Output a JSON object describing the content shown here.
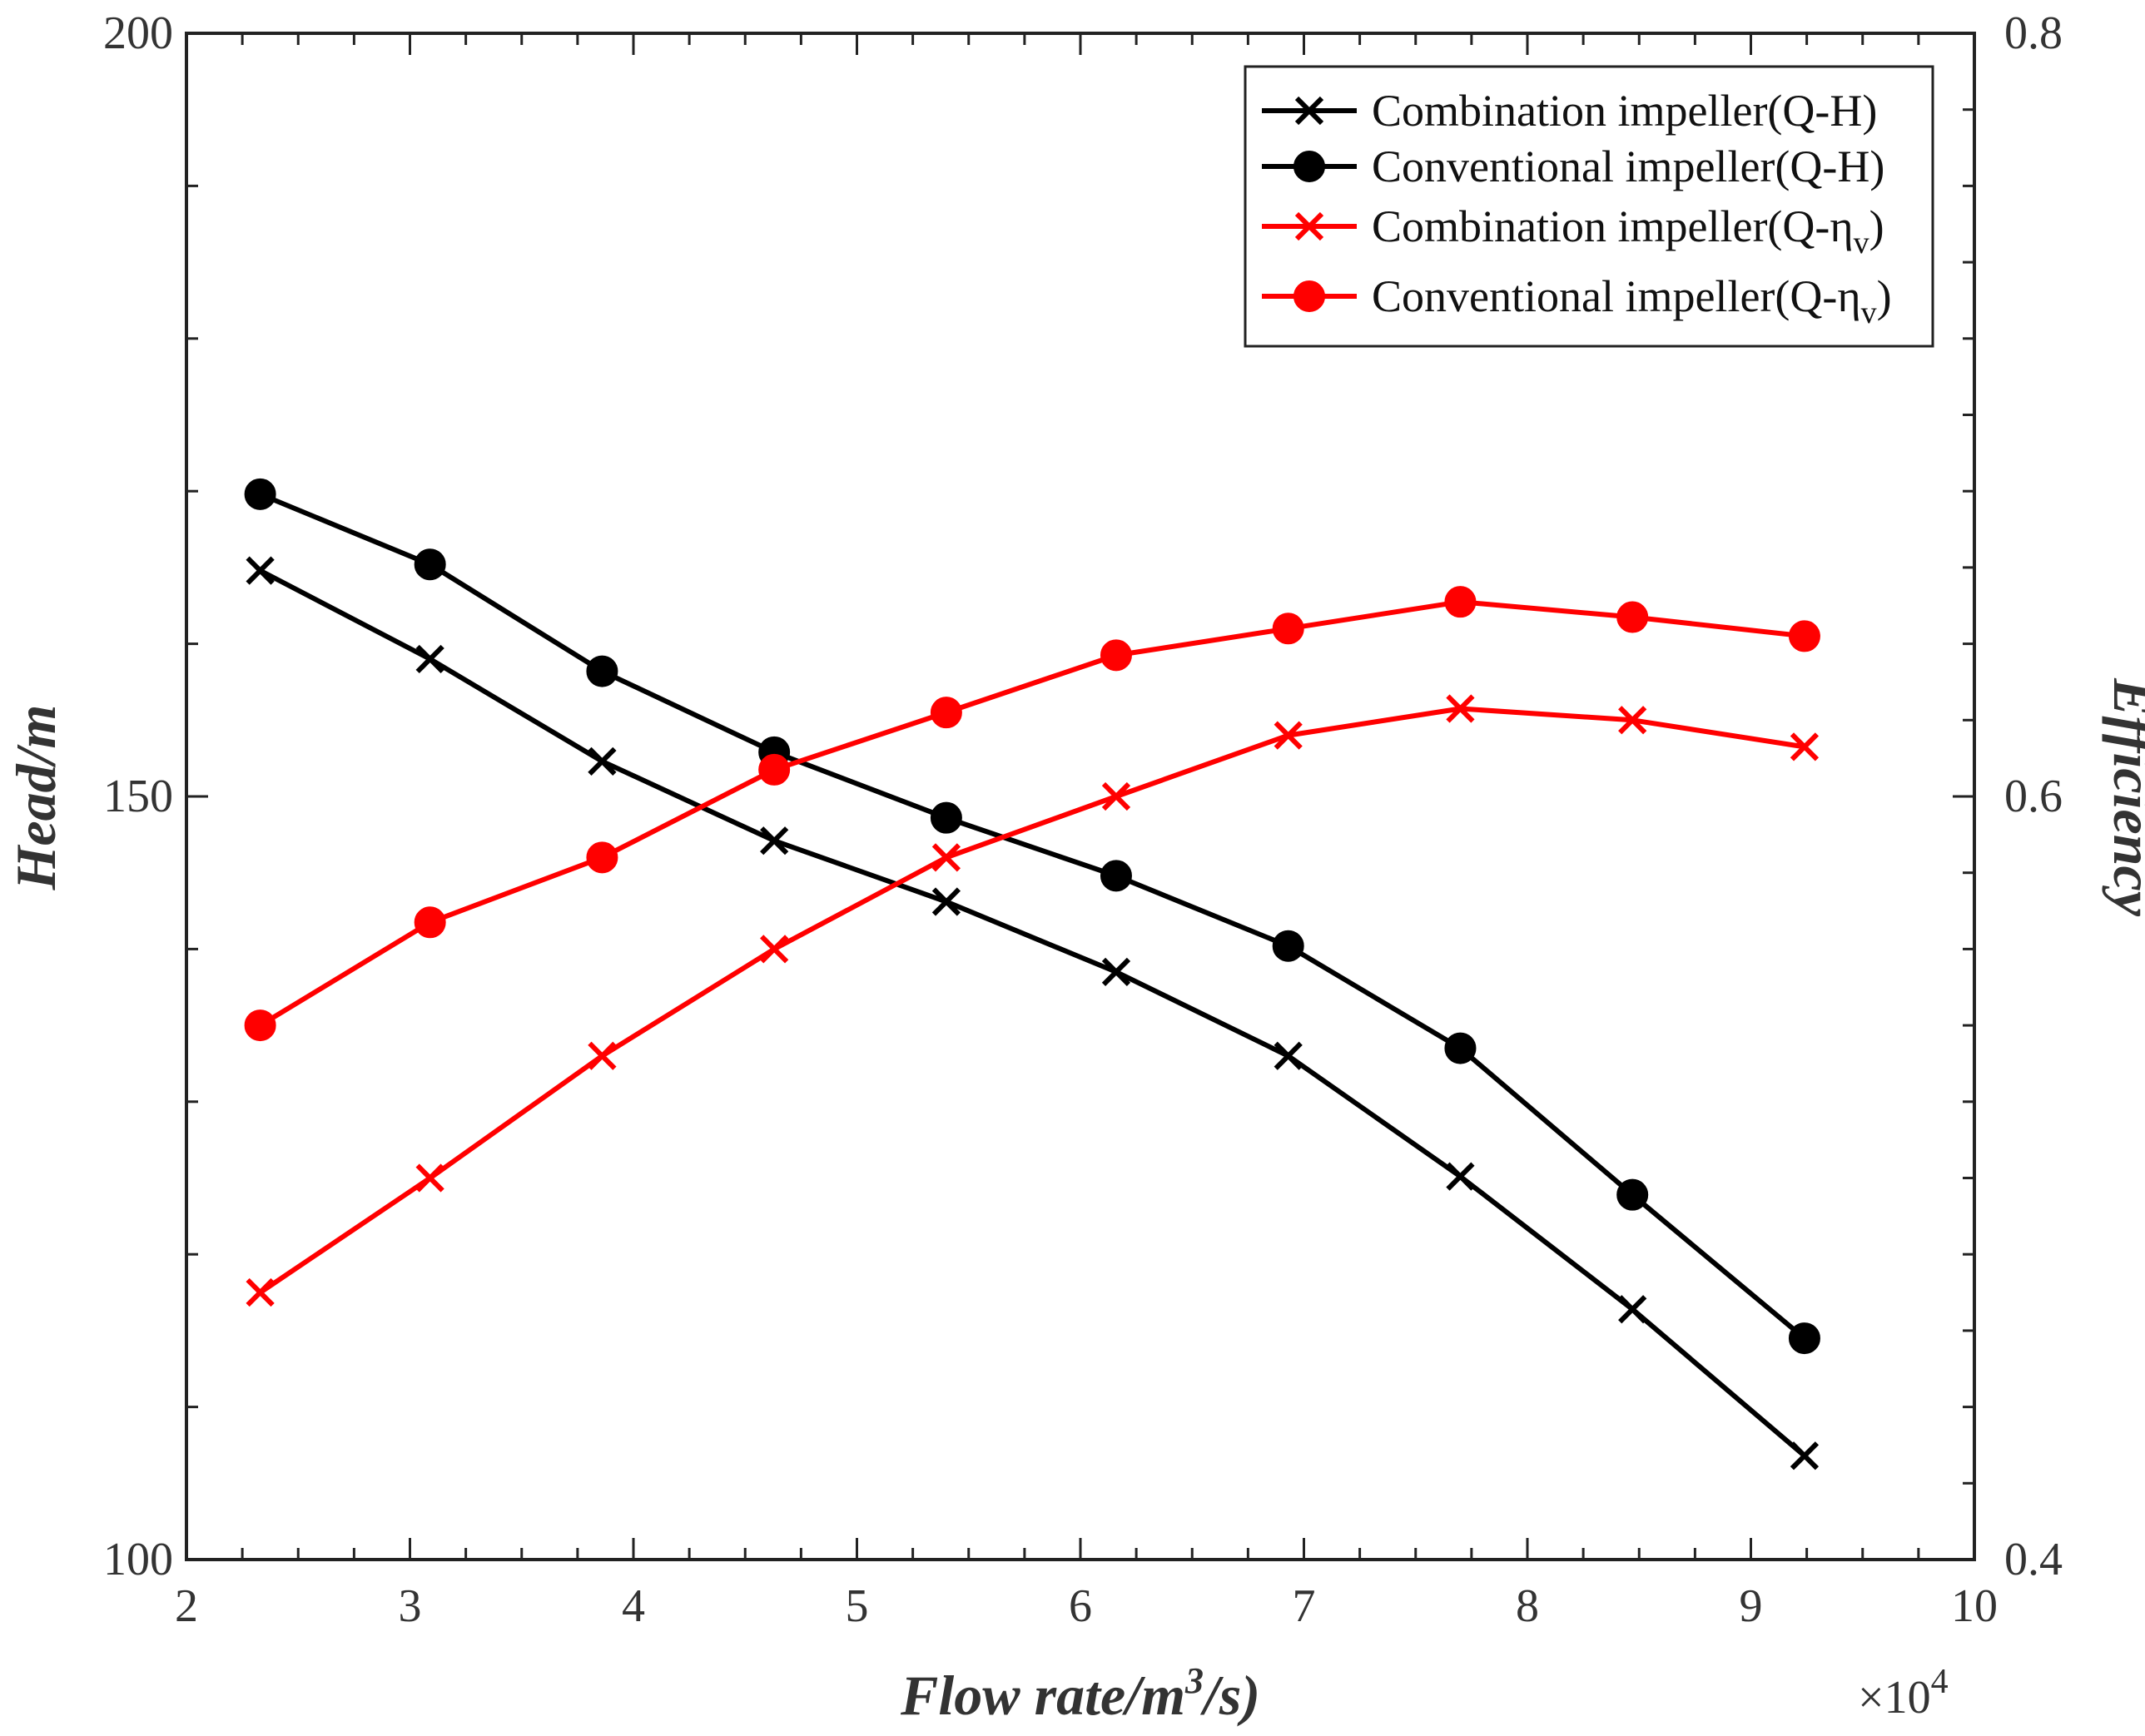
{
  "chart_data": {
    "type": "line",
    "x": [
      2.33,
      3.09,
      3.86,
      4.63,
      5.4,
      6.16,
      6.93,
      7.7,
      8.47,
      9.24
    ],
    "xlabel": "Flow rate/m",
    "xlabel_sup": "3",
    "xlabel_tail": "/s)",
    "x_multiplier": "×10",
    "x_multiplier_exp": "4",
    "ylabel": "Head/m",
    "y2label": "Efficiency",
    "xlim": [
      2,
      10
    ],
    "ylim": [
      100,
      200
    ],
    "y2lim": [
      0.4,
      0.8
    ],
    "xticks": [
      "2",
      "3",
      "4",
      "5",
      "6",
      "7",
      "8",
      "9",
      "10"
    ],
    "yticks": [
      "100",
      "150",
      "200"
    ],
    "y2ticks": [
      "0.4",
      "0.6",
      "0.8"
    ],
    "series": [
      {
        "name": "Combination impeller(Q-H)",
        "legend_main": "Combination impeller(Q-H)",
        "legend_sub": "",
        "legend_tail": "",
        "axis": "left",
        "marker": "x",
        "color": "#000000",
        "values": [
          164.8,
          159.0,
          152.3,
          147.1,
          143.1,
          138.5,
          133.0,
          125.1,
          116.4,
          106.8
        ]
      },
      {
        "name": "Conventional impeller(Q-H)",
        "legend_main": "Conventional impeller(Q-H)",
        "legend_sub": "",
        "legend_tail": "",
        "axis": "left",
        "marker": "o",
        "color": "#000000",
        "values": [
          169.8,
          165.2,
          158.2,
          152.9,
          148.6,
          144.8,
          140.2,
          133.5,
          123.9,
          114.5
        ]
      },
      {
        "name": "Combination impeller(Q-ηv)",
        "legend_main": "Combination impeller(Q-η",
        "legend_sub": "v",
        "legend_tail": ")",
        "axis": "right",
        "marker": "x",
        "color": "#ff0000",
        "values": [
          0.47,
          0.5,
          0.532,
          0.56,
          0.584,
          0.6,
          0.616,
          0.623,
          0.62,
          0.613
        ]
      },
      {
        "name": "Conventional impeller(Q-ηv)",
        "legend_main": "Conventional impeller(Q-η",
        "legend_sub": "v",
        "legend_tail": ")",
        "axis": "right",
        "marker": "o",
        "color": "#ff0000",
        "values": [
          0.54,
          0.567,
          0.584,
          0.607,
          0.622,
          0.637,
          0.644,
          0.651,
          0.647,
          0.642
        ]
      }
    ],
    "legend_position": "top-right",
    "grid": false
  }
}
